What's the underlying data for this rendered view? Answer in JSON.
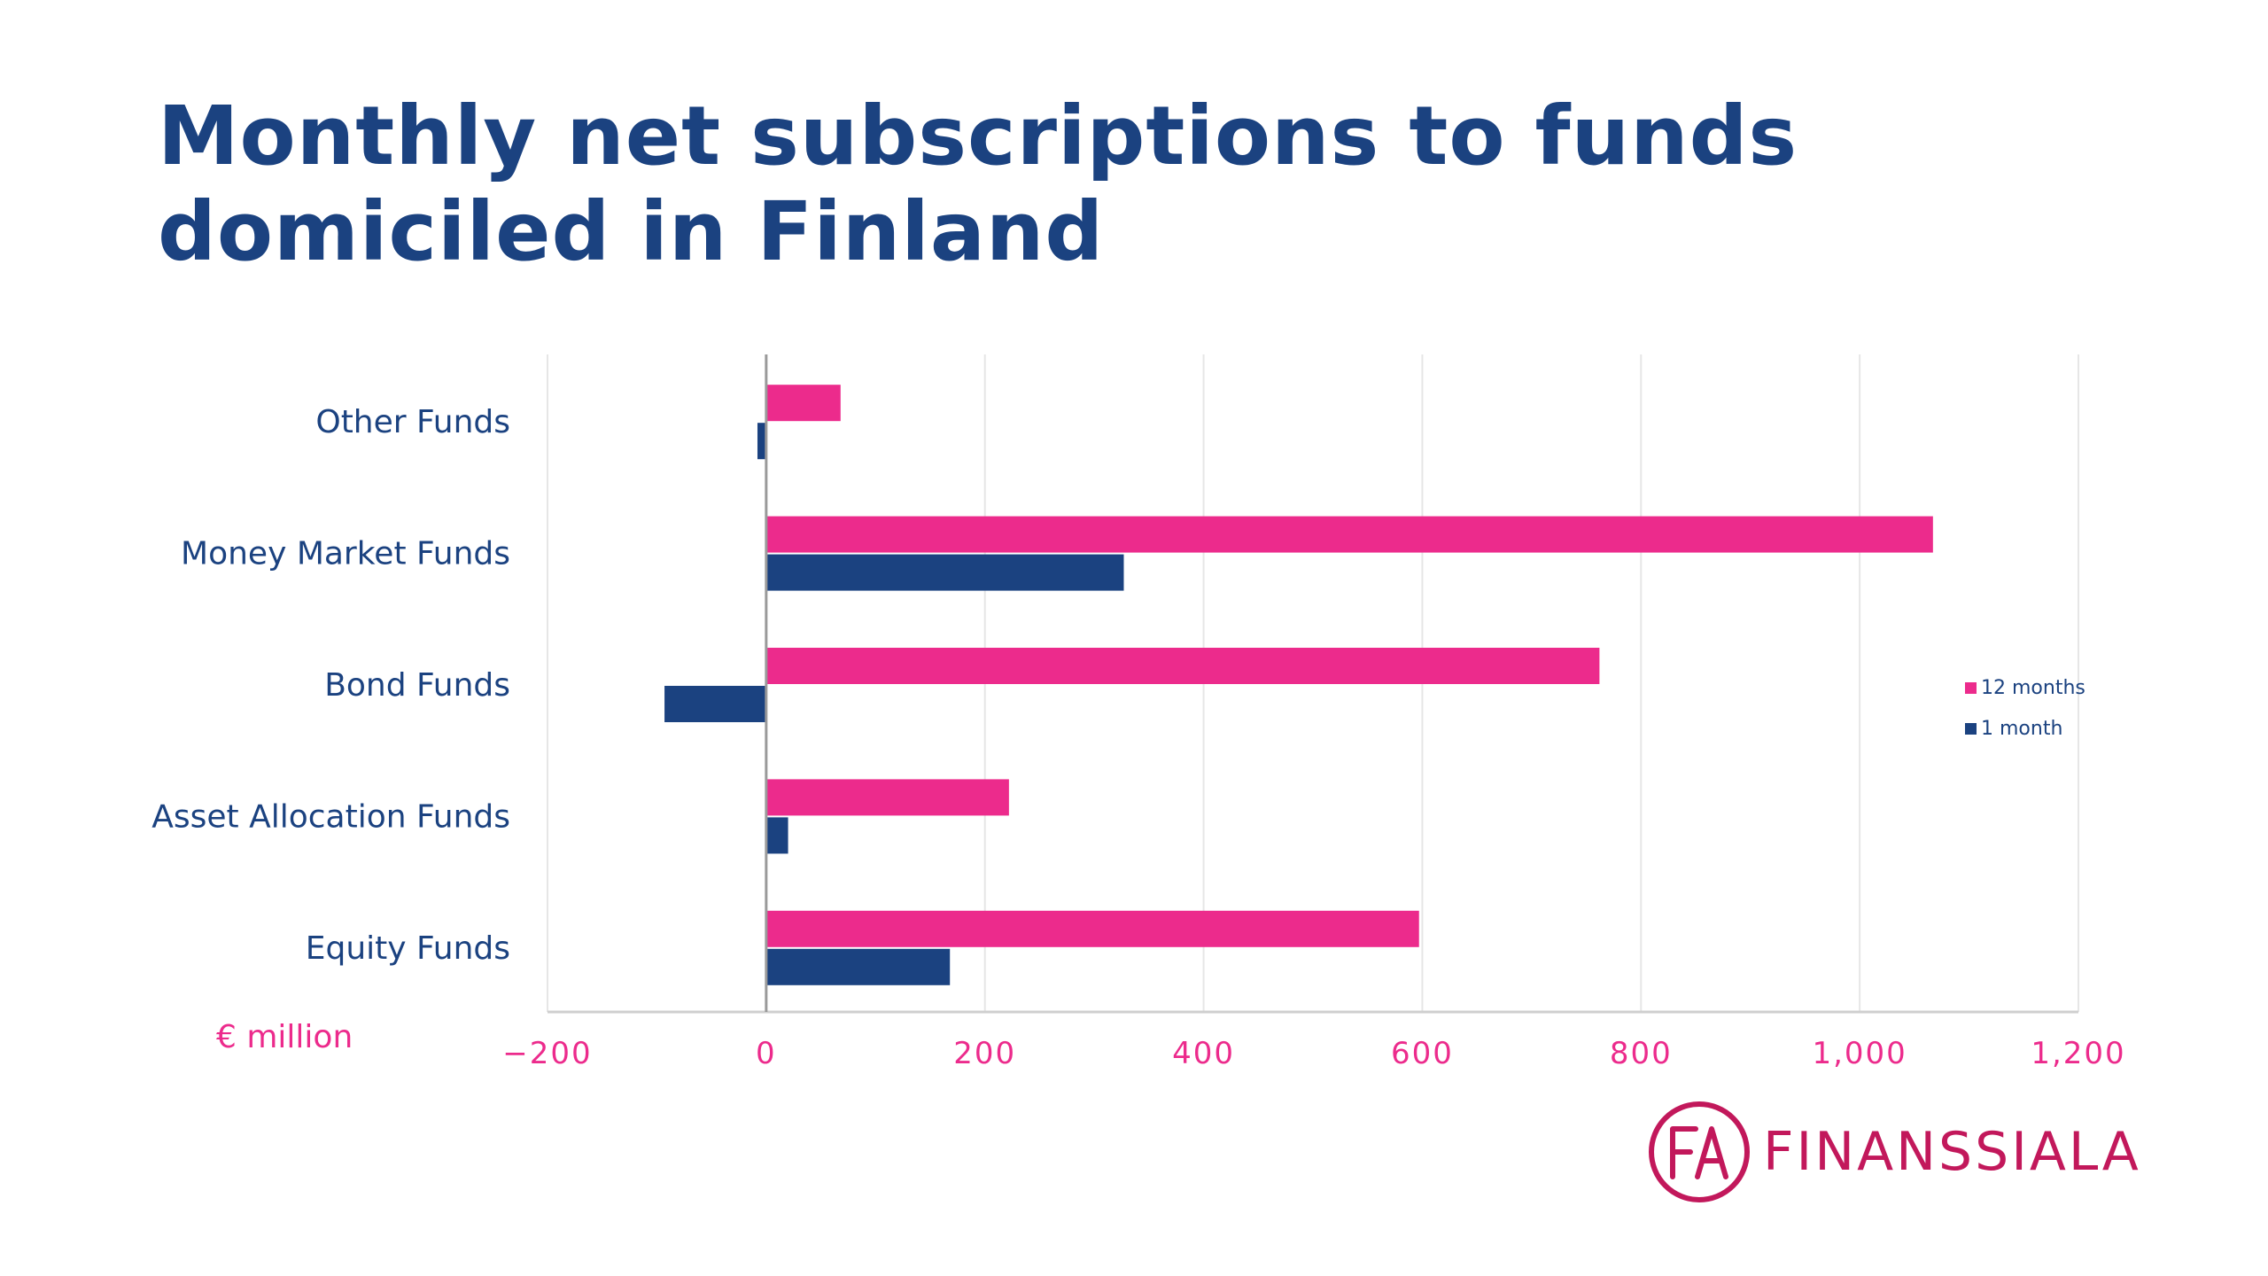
{
  "title_lines": [
    "Monthly net subscriptions to funds",
    "domiciled in Finland"
  ],
  "logo": {
    "initials": "FA",
    "name": "FINANSSIALA"
  },
  "colors": {
    "title": "#1b4280",
    "series_12m": "#ec2b8c",
    "series_1m": "#1b4280",
    "axis_labels": "#ec2b8c",
    "category_labels": "#1b4280",
    "grid": "#e6e6e6",
    "logo": "#c2185b"
  },
  "chart_data": {
    "type": "bar",
    "orientation": "horizontal",
    "categories": [
      "Other Funds",
      "Money Market Funds",
      "Bond Funds",
      "Asset Allocation Funds",
      "Equity Funds"
    ],
    "series": [
      {
        "name": "12 months",
        "values": [
          68,
          1067,
          762,
          222,
          597
        ]
      },
      {
        "name": "1 month",
        "values": [
          -8,
          327,
          -93,
          20,
          168
        ]
      }
    ],
    "xlim": [
      -200,
      1200
    ],
    "xticks": [
      -200,
      0,
      200,
      400,
      600,
      800,
      1000,
      1200
    ],
    "xtick_labels": [
      "−200",
      "0",
      "200",
      "400",
      "600",
      "800",
      "1,000",
      "1,200"
    ],
    "xlabel": "€ million",
    "grid": true,
    "legend_position": "right"
  }
}
